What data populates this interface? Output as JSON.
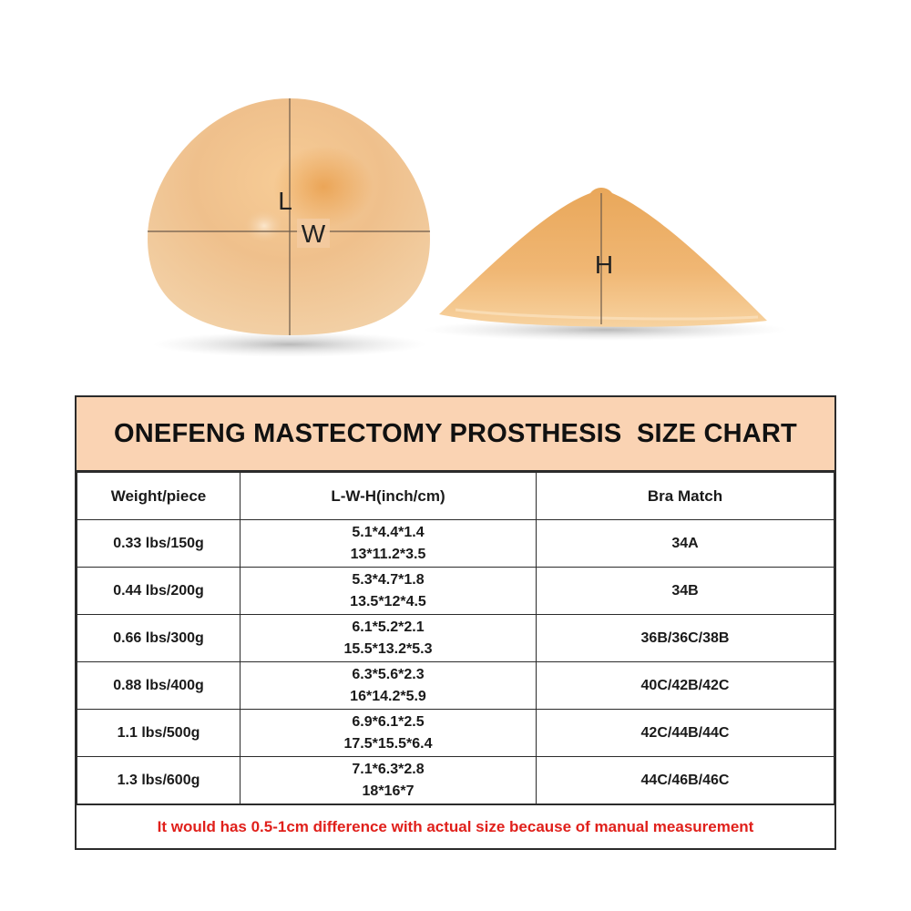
{
  "figure": {
    "left_item": {
      "length_label": "L",
      "width_label": "W"
    },
    "right_item": {
      "height_label": "H"
    }
  },
  "size_chart": {
    "title": "ONEFENG MASTECTOMY PROSTHESIS  SIZE CHART",
    "columns": [
      "Weight/piece",
      "L-W-H(inch/cm)",
      "Bra Match"
    ],
    "rows": [
      {
        "weight": "0.33 lbs/150g",
        "lwh_inch": "5.1*4.4*1.4",
        "lwh_cm": "13*11.2*3.5",
        "bra": "34A"
      },
      {
        "weight": "0.44 lbs/200g",
        "lwh_inch": "5.3*4.7*1.8",
        "lwh_cm": "13.5*12*4.5",
        "bra": "34B"
      },
      {
        "weight": "0.66 lbs/300g",
        "lwh_inch": "6.1*5.2*2.1",
        "lwh_cm": "15.5*13.2*5.3",
        "bra": "36B/36C/38B"
      },
      {
        "weight": "0.88 lbs/400g",
        "lwh_inch": "6.3*5.6*2.3",
        "lwh_cm": "16*14.2*5.9",
        "bra": "40C/42B/42C"
      },
      {
        "weight": "1.1 lbs/500g",
        "lwh_inch": "6.9*6.1*2.5",
        "lwh_cm": "17.5*15.5*6.4",
        "bra": "42C/44B/44C"
      },
      {
        "weight": "1.3 lbs/600g",
        "lwh_inch": "7.1*6.3*2.8",
        "lwh_cm": "18*16*7",
        "bra": "44C/46B/46C"
      }
    ],
    "note": "It would has 0.5-1cm difference with actual size because of manual measurement"
  },
  "colors": {
    "header_bg": "#fad3b3",
    "note_text": "#e0201b",
    "silicone": "#f0b470"
  }
}
